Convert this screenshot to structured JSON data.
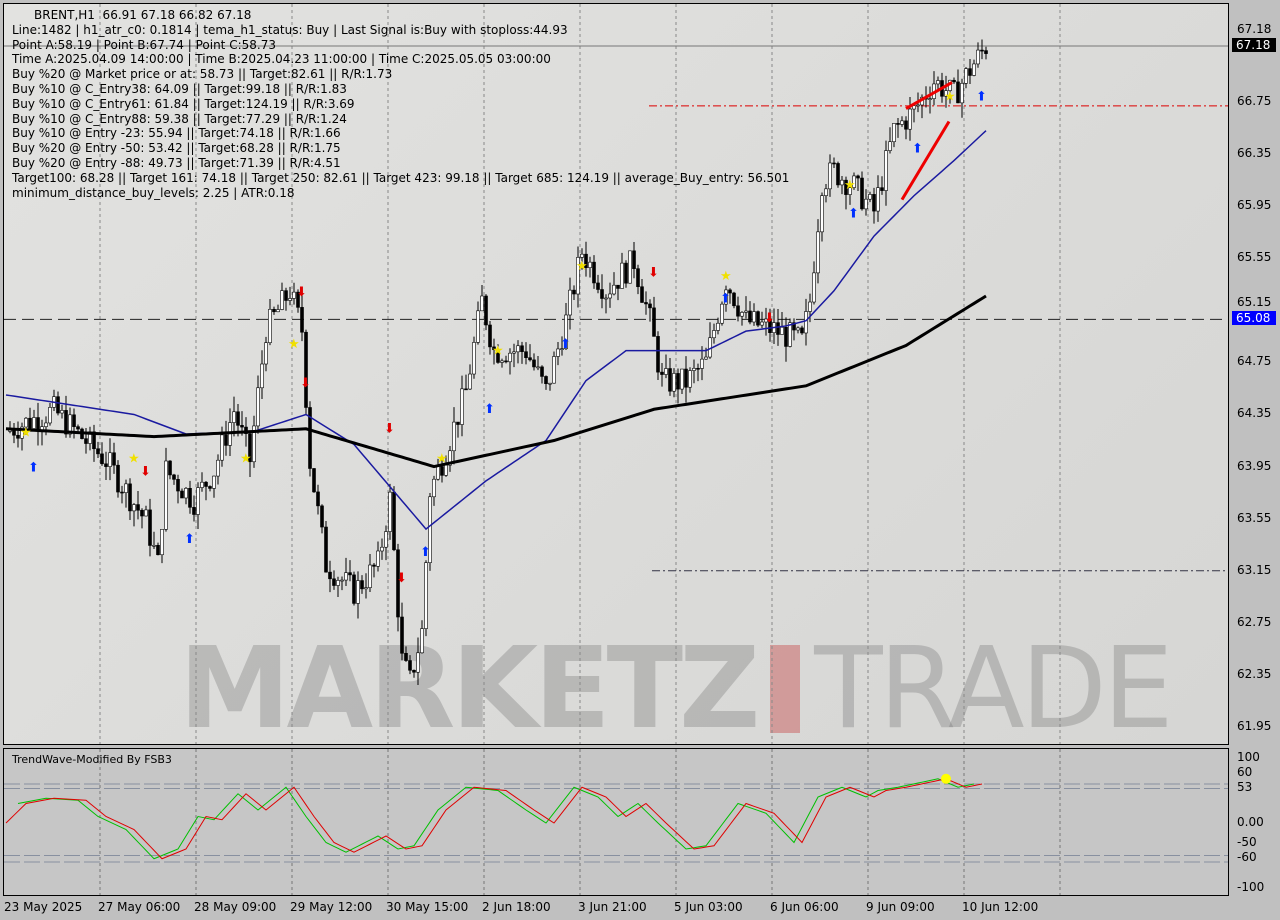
{
  "header": {
    "symbol_line": "BRENT,H1  66.91 67.18 66.82 67.18",
    "lines": [
      "Line:1482 | h1_atr_c0: 0.1814 | tema_h1_status: Buy | Last Signal is:Buy with stoploss:44.93",
      "Point A:58.19 | Point B:67.74 | Point C:58.73",
      "Time A:2025.04.09 14:00:00 | Time B:2025.04.23 11:00:00 | Time C:2025.05.05 03:00:00",
      "Buy %20 @ Market price or at: 58.73 || Target:82.61 || R/R:1.73",
      "Buy %10 @ C_Entry38: 64.09 || Target:99.18 || R/R:1.83",
      "Buy %10 @ C_Entry61: 61.84 || Target:124.19 || R/R:3.69",
      "Buy %10 @ C_Entry88: 59.38 || Target:77.29 || R/R:1.24",
      "Buy %10 @ Entry -23: 55.94 || Target:74.18 || R/R:1.66",
      "Buy %20 @ Entry -50: 53.42 || Target:68.28 || R/R:1.75",
      "Buy %20 @ Entry -88: 49.73 || Target:71.39 || R/R:4.51",
      "Target100: 68.28 || Target 161: 74.18 || Target 250: 82.61 || Target 423: 99.18 || Target 685: 124.19 || average_Buy_entry: 56.501",
      "minimum_distance_buy_levels: 2.25 | ATR:0.18"
    ]
  },
  "watermark": {
    "left": "MARKETZ",
    "right": "TRADE"
  },
  "indicator": {
    "title": "TrendWave-Modified By FSB3",
    "levels": [
      60,
      53,
      -50,
      -60
    ],
    "ticks": [
      "100",
      "60",
      "53",
      "0.00",
      "-50",
      "-60",
      "-100"
    ]
  },
  "colors": {
    "bull": "#000000",
    "bear": "#000000",
    "ma_fast": "#1a1aa0",
    "ma_slow": "#000000",
    "osc_red": "#e00000",
    "osc_green": "#00c000",
    "current_tag": "#000000",
    "blue_tag": "#0000ff"
  },
  "chart_data": {
    "type": "candlestick",
    "symbol": "BRENT",
    "timeframe": "H1",
    "ylim": [
      61.85,
      67.45
    ],
    "y_ticks": [
      "67.18",
      "66.75",
      "66.35",
      "65.95",
      "65.55",
      "65.15",
      "64.75",
      "64.35",
      "63.95",
      "63.55",
      "63.15",
      "62.75",
      "62.35",
      "61.95"
    ],
    "x_ticks": [
      "23 May 2025",
      "27 May 06:00",
      "28 May 09:00",
      "29 May 12:00",
      "30 May 15:00",
      "2 Jun 18:00",
      "3 Jun 21:00",
      "5 Jun 03:00",
      "6 Jun 06:00",
      "9 Jun 09:00",
      "10 Jun 12:00"
    ],
    "current_price": "67.18",
    "blue_level": "65.08",
    "red_level": 66.72,
    "dark_level": 63.15,
    "close_path": [
      [
        0,
        64.22
      ],
      [
        12,
        64.38
      ],
      [
        25,
        64.0
      ],
      [
        35,
        63.53
      ],
      [
        38,
        63.2
      ],
      [
        40,
        63.92
      ],
      [
        47,
        63.69
      ],
      [
        52,
        63.92
      ],
      [
        57,
        64.38
      ],
      [
        61,
        64.0
      ],
      [
        65,
        65.0
      ],
      [
        71,
        65.3
      ],
      [
        74,
        65.0
      ],
      [
        76,
        63.99
      ],
      [
        80,
        63.2
      ],
      [
        87,
        62.99
      ],
      [
        93,
        63.2
      ],
      [
        96,
        63.7
      ],
      [
        99,
        62.46
      ],
      [
        101,
        62.3
      ],
      [
        104,
        62.68
      ],
      [
        106,
        63.76
      ],
      [
        110,
        64.07
      ],
      [
        115,
        64.53
      ],
      [
        119,
        65.22
      ],
      [
        122,
        64.84
      ],
      [
        130,
        64.84
      ],
      [
        135,
        64.53
      ],
      [
        140,
        65.07
      ],
      [
        144,
        65.6
      ],
      [
        150,
        65.3
      ],
      [
        157,
        65.53
      ],
      [
        161,
        65.07
      ],
      [
        164,
        64.6
      ],
      [
        170,
        64.6
      ],
      [
        175,
        64.75
      ],
      [
        180,
        65.38
      ],
      [
        185,
        65.07
      ],
      [
        192,
        65.0
      ],
      [
        199,
        64.91
      ],
      [
        201,
        65.22
      ],
      [
        204,
        66.14
      ],
      [
        207,
        66.22
      ],
      [
        212,
        66.1
      ],
      [
        217,
        65.91
      ],
      [
        222,
        66.53
      ],
      [
        227,
        66.68
      ],
      [
        232,
        66.91
      ],
      [
        237,
        66.8
      ],
      [
        241,
        67.0
      ],
      [
        245,
        67.18
      ]
    ],
    "ma_fast": [
      [
        0,
        64.5
      ],
      [
        32,
        64.35
      ],
      [
        45,
        64.2
      ],
      [
        62,
        64.22
      ],
      [
        75,
        64.35
      ],
      [
        87,
        64.12
      ],
      [
        105,
        63.47
      ],
      [
        120,
        63.84
      ],
      [
        135,
        64.15
      ],
      [
        145,
        64.61
      ],
      [
        155,
        64.84
      ],
      [
        165,
        64.84
      ],
      [
        175,
        64.84
      ],
      [
        185,
        64.99
      ],
      [
        195,
        65.03
      ],
      [
        200,
        65.07
      ],
      [
        207,
        65.3
      ],
      [
        217,
        65.72
      ],
      [
        227,
        66.03
      ],
      [
        237,
        66.3
      ],
      [
        245,
        66.53
      ]
    ],
    "ma_slow": [
      [
        0,
        64.24
      ],
      [
        37,
        64.18
      ],
      [
        75,
        64.24
      ],
      [
        107,
        63.95
      ],
      [
        137,
        64.15
      ],
      [
        162,
        64.39
      ],
      [
        200,
        64.57
      ],
      [
        225,
        64.88
      ],
      [
        245,
        65.26
      ]
    ],
    "oscillator": [
      [
        0,
        0
      ],
      [
        5,
        30
      ],
      [
        12,
        38
      ],
      [
        20,
        35
      ],
      [
        25,
        10
      ],
      [
        32,
        -10
      ],
      [
        39,
        -55
      ],
      [
        45,
        -40
      ],
      [
        50,
        10
      ],
      [
        54,
        5
      ],
      [
        60,
        45
      ],
      [
        65,
        20
      ],
      [
        72,
        55
      ],
      [
        77,
        10
      ],
      [
        82,
        -30
      ],
      [
        87,
        -45
      ],
      [
        95,
        -20
      ],
      [
        100,
        -40
      ],
      [
        104,
        -35
      ],
      [
        110,
        20
      ],
      [
        117,
        55
      ],
      [
        125,
        50
      ],
      [
        132,
        20
      ],
      [
        137,
        0
      ],
      [
        144,
        55
      ],
      [
        150,
        40
      ],
      [
        155,
        10
      ],
      [
        160,
        30
      ],
      [
        165,
        0
      ],
      [
        172,
        -40
      ],
      [
        177,
        -35
      ],
      [
        185,
        30
      ],
      [
        192,
        15
      ],
      [
        199,
        -30
      ],
      [
        205,
        40
      ],
      [
        211,
        55
      ],
      [
        217,
        40
      ],
      [
        220,
        50
      ],
      [
        225,
        55
      ],
      [
        235,
        68
      ],
      [
        240,
        55
      ],
      [
        244,
        60
      ]
    ],
    "signals": [
      {
        "type": "buy-arrow",
        "bar": 7,
        "price": 63.95
      },
      {
        "type": "star",
        "bar": 5,
        "price": 64.22
      },
      {
        "type": "sell-arrow",
        "bar": 35,
        "price": 63.92
      },
      {
        "type": "star",
        "bar": 32,
        "price": 64.02
      },
      {
        "type": "buy-arrow",
        "bar": 46,
        "price": 63.4
      },
      {
        "type": "star",
        "bar": 60,
        "price": 64.02
      },
      {
        "type": "sell-arrow",
        "bar": 74,
        "price": 65.3
      },
      {
        "type": "star",
        "bar": 72,
        "price": 64.9
      },
      {
        "type": "sell-arrow",
        "bar": 75,
        "price": 64.6
      },
      {
        "type": "sell-arrow",
        "bar": 96,
        "price": 64.25
      },
      {
        "type": "sell-arrow",
        "bar": 99,
        "price": 63.1
      },
      {
        "type": "buy-arrow",
        "bar": 105,
        "price": 63.3
      },
      {
        "type": "star",
        "bar": 109,
        "price": 64.02
      },
      {
        "type": "buy-arrow",
        "bar": 121,
        "price": 64.4
      },
      {
        "type": "star",
        "bar": 123,
        "price": 64.85
      },
      {
        "type": "buy-arrow",
        "bar": 140,
        "price": 64.9
      },
      {
        "type": "star",
        "bar": 144,
        "price": 65.5
      },
      {
        "type": "sell-arrow",
        "bar": 162,
        "price": 65.45
      },
      {
        "type": "buy-arrow",
        "bar": 180,
        "price": 65.25
      },
      {
        "type": "star",
        "bar": 180,
        "price": 65.42
      },
      {
        "type": "sell-arrow",
        "bar": 191,
        "price": 65.1
      },
      {
        "type": "buy-arrow",
        "bar": 212,
        "price": 65.9
      },
      {
        "type": "star",
        "bar": 211,
        "price": 66.12
      },
      {
        "type": "buy-arrow",
        "bar": 228,
        "price": 66.4
      },
      {
        "type": "star",
        "bar": 236,
        "price": 66.8
      },
      {
        "type": "buy-arrow",
        "bar": 244,
        "price": 66.8
      }
    ]
  }
}
